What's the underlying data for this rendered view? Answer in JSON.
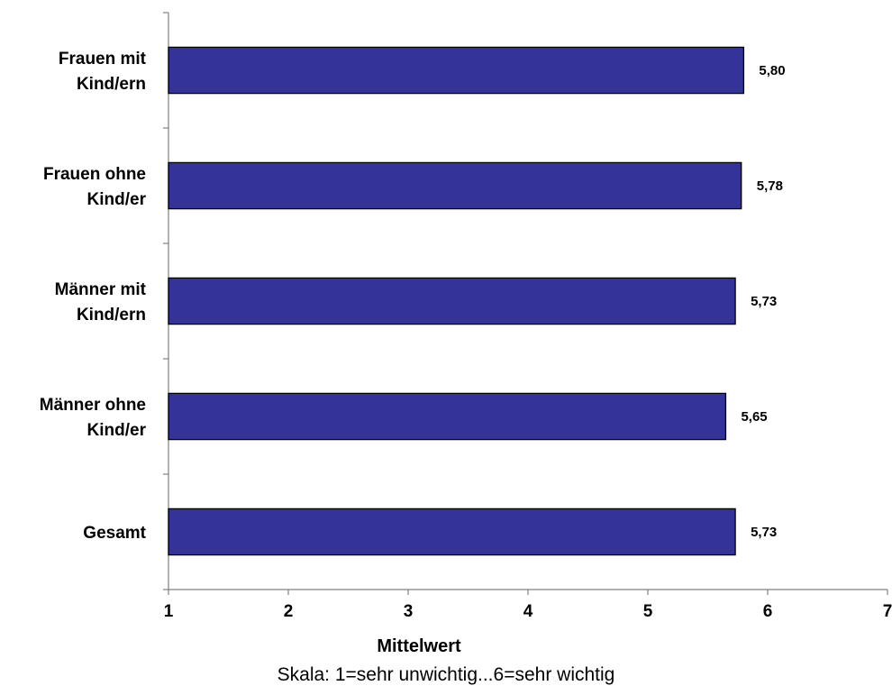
{
  "chart_data": {
    "type": "bar",
    "orientation": "horizontal",
    "categories": [
      [
        "Frauen mit",
        "Kind/ern"
      ],
      [
        "Frauen ohne",
        "Kind/er"
      ],
      [
        "Männer mit",
        "Kind/ern"
      ],
      [
        "Männer ohne",
        "Kind/er"
      ],
      [
        "Gesamt"
      ]
    ],
    "values": [
      5.8,
      5.78,
      5.73,
      5.65,
      5.73
    ],
    "value_labels": [
      "5,80",
      "5,78",
      "5,73",
      "5,65",
      "5,73"
    ],
    "xlabel": "Mittelwert",
    "xlim": [
      1,
      7
    ],
    "xticks": [
      1,
      2,
      3,
      4,
      5,
      6,
      7
    ],
    "xtick_labels": [
      "1",
      "2",
      "3",
      "4",
      "5",
      "6",
      "7"
    ],
    "note": "Skala: 1=sehr unwichtig...6=sehr wichtig",
    "grid": false,
    "legend": "none",
    "bar_color": "#333399",
    "bar_edge_color": "#000000",
    "axis_color": "#808080"
  }
}
